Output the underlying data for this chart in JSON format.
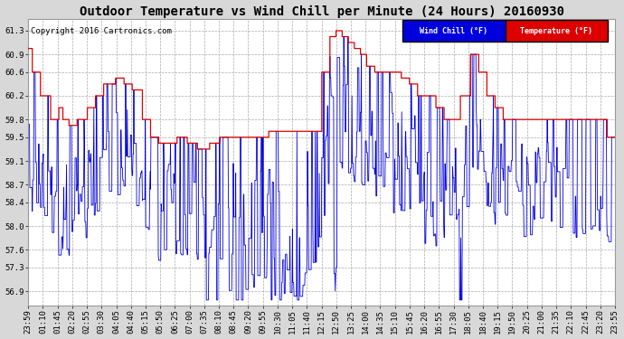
{
  "title": "Outdoor Temperature vs Wind Chill per Minute (24 Hours) 20160930",
  "copyright_text": "Copyright 2016 Cartronics.com",
  "legend_wind_chill": "Wind Chill (°F)",
  "legend_temperature": "Temperature (°F)",
  "yticks": [
    56.9,
    57.3,
    57.6,
    58.0,
    58.4,
    58.7,
    59.1,
    59.5,
    59.8,
    60.2,
    60.6,
    60.9,
    61.3
  ],
  "ymin": 56.65,
  "ymax": 61.5,
  "xtick_labels": [
    "23:59",
    "01:10",
    "01:45",
    "02:20",
    "02:55",
    "03:30",
    "04:05",
    "04:40",
    "05:15",
    "05:50",
    "06:25",
    "07:00",
    "07:35",
    "08:10",
    "08:45",
    "09:20",
    "09:55",
    "10:30",
    "11:05",
    "11:40",
    "12:15",
    "12:50",
    "13:25",
    "14:00",
    "14:35",
    "15:10",
    "15:45",
    "16:20",
    "16:55",
    "17:30",
    "18:05",
    "18:40",
    "19:15",
    "19:50",
    "20:25",
    "21:00",
    "21:35",
    "22:10",
    "22:45",
    "23:20",
    "23:55"
  ],
  "background_color": "#d8d8d8",
  "plot_background": "#ffffff",
  "grid_color": "#aaaaaa",
  "wind_chill_color": "#0000dd",
  "temp_color": "#dd0000",
  "title_fontsize": 10,
  "copyright_fontsize": 6.5,
  "tick_fontsize": 6.5
}
